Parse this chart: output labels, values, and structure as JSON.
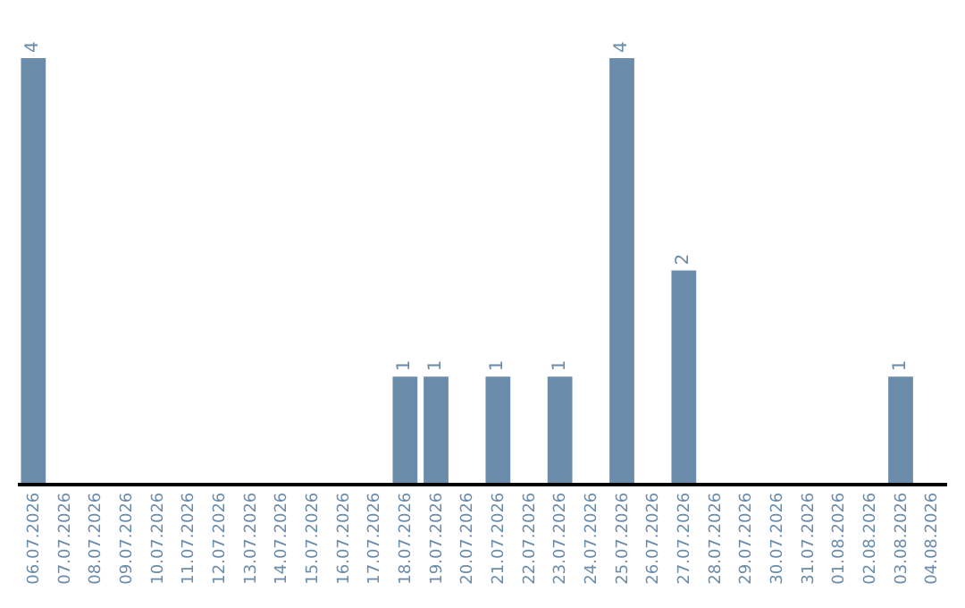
{
  "chart_data": {
    "type": "bar",
    "categories": [
      "06.07.2026",
      "07.07.2026",
      "08.07.2026",
      "09.07.2026",
      "10.07.2026",
      "11.07.2026",
      "12.07.2026",
      "13.07.2026",
      "14.07.2026",
      "15.07.2026",
      "16.07.2026",
      "17.07.2026",
      "18.07.2026",
      "19.07.2026",
      "20.07.2026",
      "21.07.2026",
      "22.07.2026",
      "23.07.2026",
      "24.07.2026",
      "25.07.2026",
      "26.07.2026",
      "27.07.2026",
      "28.07.2026",
      "29.07.2026",
      "30.07.2026",
      "31.07.2026",
      "01.08.2026",
      "02.08.2026",
      "03.08.2026",
      "04.08.2026"
    ],
    "values": [
      4,
      0,
      0,
      0,
      0,
      0,
      0,
      0,
      0,
      0,
      0,
      0,
      1,
      1,
      0,
      1,
      0,
      1,
      0,
      4,
      0,
      2,
      0,
      0,
      0,
      0,
      0,
      0,
      1,
      0
    ],
    "value_labels": [
      "4",
      null,
      null,
      null,
      null,
      null,
      null,
      null,
      null,
      null,
      null,
      null,
      "1",
      "1",
      null,
      "1",
      null,
      "1",
      null,
      "4",
      null,
      "2",
      null,
      null,
      null,
      null,
      null,
      null,
      "1",
      null
    ],
    "color": "#6b8caa"
  }
}
